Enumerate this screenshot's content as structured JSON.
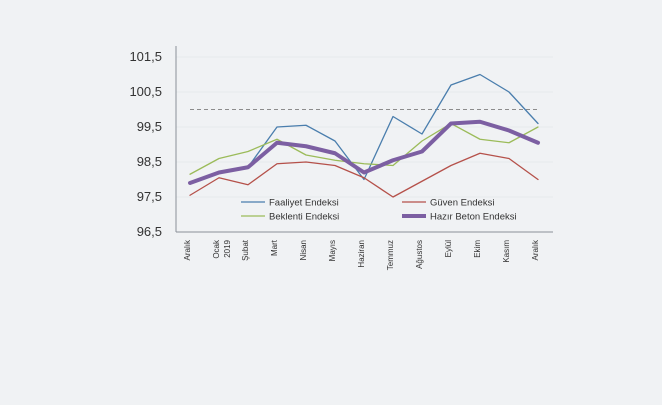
{
  "chart_data": {
    "type": "line",
    "title": "",
    "xlabel": "",
    "ylabel": "",
    "categories": [
      "Aralık",
      "Ocak\n2019",
      "Şubat",
      "Mart",
      "Nisan",
      "Mayıs",
      "Haziran",
      "Temmuz",
      "Ağustos",
      "Eylül",
      "Ekim",
      "Kasım",
      "Aralık"
    ],
    "y_ticks": [
      "96,5",
      "97,5",
      "98,5",
      "99,5",
      "100,5",
      "101,5"
    ],
    "ylim": [
      96.5,
      101.7
    ],
    "reference_line": 100.0,
    "grid": true,
    "legend": [
      {
        "label": "Faaliyet Endeksi"
      },
      {
        "label": "Güven Endeksi"
      },
      {
        "label": "Beklenti Endeksi"
      },
      {
        "label": "Hazır Beton Endeksi"
      }
    ],
    "series": [
      {
        "name": "Faaliyet Endeksi",
        "color": "#4a7ead",
        "width": 1.3,
        "x": [
          0,
          1,
          2,
          3,
          4,
          5,
          6,
          7,
          8,
          9,
          10,
          11,
          12
        ],
        "values": [
          97.9,
          98.2,
          98.35,
          99.5,
          99.55,
          99.1,
          98.0,
          99.8,
          99.3,
          100.7,
          101.0,
          100.5,
          99.6
        ]
      },
      {
        "name": "Güven Endeksi",
        "color": "#b5514a",
        "width": 1.3,
        "x": [
          0,
          1,
          2,
          3,
          4,
          5,
          6,
          7,
          8,
          9,
          10,
          11,
          12
        ],
        "values": [
          97.55,
          98.05,
          97.85,
          98.45,
          98.5,
          98.4,
          98.05,
          97.5,
          97.95,
          98.4,
          98.75,
          98.6,
          98.0
        ]
      },
      {
        "name": "Beklenti Endeksi",
        "color": "#9bbb59",
        "width": 1.3,
        "x": [
          0,
          1,
          2,
          3,
          4,
          5,
          6,
          7,
          8,
          9,
          10,
          11,
          12
        ],
        "values": [
          98.15,
          98.6,
          98.8,
          99.15,
          98.7,
          98.55,
          98.45,
          98.4,
          99.1,
          99.6,
          99.15,
          99.05,
          99.5
        ]
      },
      {
        "name": "Hazır Beton Endeksi",
        "color": "#7c5fa2",
        "width": 4,
        "x": [
          0,
          1,
          2,
          3,
          4,
          5,
          6,
          7,
          8,
          9,
          10,
          11,
          12
        ],
        "values": [
          97.9,
          98.2,
          98.35,
          99.05,
          98.95,
          98.75,
          98.2,
          98.55,
          98.8,
          99.6,
          99.65,
          99.4,
          99.05
        ]
      }
    ]
  }
}
